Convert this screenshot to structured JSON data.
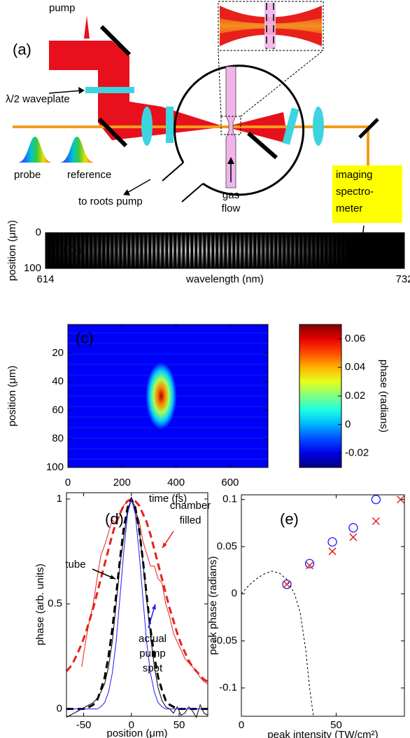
{
  "diagram": {
    "label": "(a)",
    "pump": "pump",
    "waveplate": "λ/2 waveplate",
    "probe": "probe",
    "reference": "reference",
    "roots_pump": "to roots pump",
    "gas_flow": [
      "gas",
      "flow"
    ],
    "spectrometer": [
      "imaging",
      "spectro-",
      "meter"
    ]
  },
  "chart_data": [
    {
      "type": "image",
      "label": "(b)",
      "xlabel": "wavelength (nm)",
      "ylabel": "position (μm)",
      "xlim": [
        614,
        732
      ],
      "ylim": [
        0,
        100
      ],
      "xticks": [
        614,
        732
      ],
      "yticks": [
        0,
        100
      ],
      "y_reversed": true
    },
    {
      "type": "heatmap",
      "label": "(c)",
      "xlabel": "time (fs)",
      "ylabel": "position (μm)",
      "colorbar_label": "phase (radians)",
      "xlim": [
        0,
        740
      ],
      "ylim": [
        0,
        100
      ],
      "xticks": [
        0,
        200,
        400,
        600
      ],
      "yticks": [
        20,
        40,
        60,
        80,
        100
      ],
      "y_reversed": true,
      "clim": [
        -0.03,
        0.07
      ],
      "cticks": [
        -0.02,
        0,
        0.02,
        0.04,
        0.06
      ],
      "background_value": -0.018,
      "peak": {
        "x": 345,
        "y": 50,
        "value": 0.066
      }
    },
    {
      "type": "line",
      "label": "(d)",
      "xlabel": "position (μm)",
      "ylabel": "phase (arb. units)",
      "xlim": [
        -68,
        80
      ],
      "ylim": [
        -0.035,
        1.03
      ],
      "xticks": [
        -50,
        0,
        50
      ],
      "yticks": [
        0,
        0.5,
        1
      ],
      "x": [
        -68,
        -64,
        -60,
        -56,
        -52,
        -48,
        -44,
        -40,
        -36,
        -32,
        -28,
        -24,
        -20,
        -16,
        -12,
        -8,
        -4,
        0,
        4,
        8,
        12,
        16,
        20,
        24,
        28,
        32,
        36,
        40,
        44,
        48,
        52,
        56,
        60,
        64,
        68,
        72,
        76,
        80
      ],
      "series": [
        {
          "name": "chamber filled",
          "color": "#e8201c",
          "dashed": true,
          "values": [
            0.18,
            0.2,
            0.23,
            0.27,
            0.31,
            0.36,
            0.42,
            0.48,
            0.55,
            0.62,
            0.69,
            0.76,
            0.83,
            0.89,
            0.93,
            0.97,
            0.99,
            1,
            0.99,
            0.97,
            0.93,
            0.89,
            0.83,
            0.76,
            0.69,
            0.62,
            0.55,
            0.48,
            0.42,
            0.36,
            0.31,
            0.27,
            0.23,
            0.2,
            0.18,
            0.16,
            0.14,
            0.13
          ]
        },
        {
          "color": "#e8201c",
          "dashed": false,
          "values": [
            null,
            null,
            null,
            null,
            0.2,
            0.32,
            0.42,
            0.5,
            0.62,
            0.73,
            0.78,
            0.84,
            0.9,
            0.88,
            0.92,
            0.97,
            0.99,
            1,
            0.94,
            0.9,
            0.8,
            0.74,
            0.68,
            0.68,
            0.62,
            0.6,
            0.5,
            0.44,
            0.36,
            0.32,
            0.28,
            0.24,
            0.22,
            0.2,
            0.18,
            0.15,
            0.13,
            0.12
          ]
        },
        {
          "name": "tube",
          "color": "#000000",
          "dashed": true,
          "values": [
            0,
            0,
            0,
            0,
            0,
            0,
            0.01,
            0.02,
            0.04,
            0.09,
            0.15,
            0.25,
            0.38,
            0.54,
            0.71,
            0.86,
            0.96,
            1,
            0.96,
            0.86,
            0.71,
            0.54,
            0.38,
            0.25,
            0.15,
            0.09,
            0.04,
            0.02,
            0.01,
            0,
            0,
            0,
            0,
            0,
            0,
            0,
            0,
            0
          ]
        },
        {
          "color": "#000000",
          "dashed": false,
          "values": [
            -0.04,
            -0.03,
            -0.02,
            -0.01,
            0,
            0.01,
            0.02,
            0.03,
            0.05,
            0.08,
            0.12,
            0.2,
            0.32,
            0.5,
            0.68,
            0.82,
            0.95,
            1,
            0.96,
            0.86,
            0.7,
            0.52,
            0.35,
            0.2,
            0.1,
            0.04,
            0.01,
            0,
            -0.02,
            0.01,
            -0.03,
            -0.02,
            0.01,
            -0.01,
            -0.04,
            0.02,
            -0.02,
            -0.03
          ]
        },
        {
          "name": "actual pump spot",
          "color": "#1a1aff",
          "dashed": false,
          "values": [
            0,
            0,
            0,
            0,
            0,
            0,
            0,
            0,
            0,
            0.01,
            0.03,
            0.08,
            0.17,
            0.32,
            0.53,
            0.75,
            0.93,
            1,
            0.93,
            0.75,
            0.53,
            0.32,
            0.17,
            0.08,
            0.03,
            0.01,
            0,
            0,
            0,
            0,
            0,
            0,
            0,
            0,
            0,
            0,
            0,
            0
          ]
        }
      ]
    },
    {
      "type": "scatter",
      "label": "(e)",
      "xlabel": "peak intensity (TW/cm²)",
      "ylabel": "peak phase (radians)",
      "xlim": [
        0,
        86
      ],
      "ylim": [
        -0.13,
        0.105
      ],
      "xticks": [
        0,
        50
      ],
      "yticks": [
        -0.1,
        -0.05,
        0,
        0.05,
        0.1
      ],
      "series": [
        {
          "marker": "circle",
          "color": "#1a1aff",
          "x": [
            24,
            36,
            48,
            59,
            71
          ],
          "values": [
            0.01,
            0.032,
            0.055,
            0.07,
            0.1
          ]
        },
        {
          "marker": "cross",
          "color": "#e8201c",
          "x": [
            24,
            36,
            48,
            59,
            71,
            84
          ],
          "values": [
            0.01,
            0.03,
            0.045,
            0.06,
            0.077,
            0.1
          ]
        },
        {
          "marker": "dashed-line",
          "color": "#000000",
          "x": [
            0,
            4,
            8,
            12,
            16,
            20,
            24,
            28,
            31,
            34,
            36,
            38
          ],
          "values": [
            0,
            0.009,
            0.016,
            0.021,
            0.024,
            0.022,
            0.015,
            0,
            -0.02,
            -0.06,
            -0.1,
            -0.14
          ]
        }
      ]
    }
  ]
}
